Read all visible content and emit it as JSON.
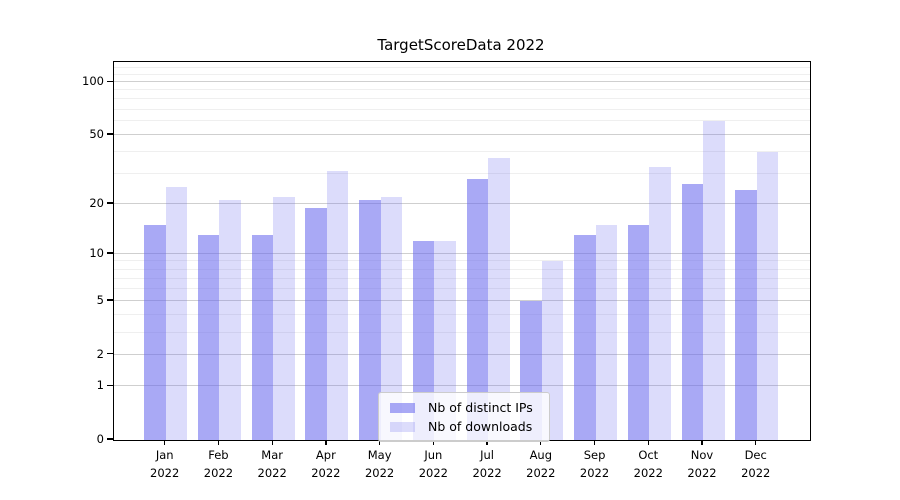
{
  "title": "TargetScoreData 2022",
  "colors": {
    "ips_bar": "rgba(102,102,238,0.56)",
    "downloads_bar": "rgba(102,102,238,0.23)",
    "major_grid": "#cfcfcf",
    "minor_grid": "#efefef",
    "axis": "#000000"
  },
  "x_axis": {
    "months": [
      "Jan",
      "Feb",
      "Mar",
      "Apr",
      "May",
      "Jun",
      "Jul",
      "Aug",
      "Sep",
      "Oct",
      "Nov",
      "Dec"
    ],
    "year": "2022"
  },
  "y_axis": {
    "tick_labels": [
      "100",
      "50",
      "20",
      "10",
      "5",
      "2",
      "1",
      "0"
    ]
  },
  "chart_data": {
    "type": "bar",
    "title": "TargetScoreData 2022",
    "categories": [
      "Jan 2022",
      "Feb 2022",
      "Mar 2022",
      "Apr 2022",
      "May 2022",
      "Jun 2022",
      "Jul 2022",
      "Aug 2022",
      "Sep 2022",
      "Oct 2022",
      "Nov 2022",
      "Dec 2022"
    ],
    "series": [
      {
        "name": "Nb of distinct IPs",
        "values": [
          15,
          13,
          13,
          19,
          21,
          12,
          28,
          5,
          13,
          15,
          26,
          24
        ]
      },
      {
        "name": "Nb of downloads",
        "values": [
          25,
          21,
          22,
          31,
          22,
          12,
          37,
          9,
          15,
          33,
          60,
          40
        ]
      }
    ],
    "yscale": "log1p",
    "y_ticks": [
      0,
      1,
      2,
      5,
      10,
      20,
      50,
      100
    ],
    "y_minor_ticks": [
      3,
      4,
      6,
      7,
      8,
      9,
      30,
      40,
      60,
      70,
      80,
      90,
      110,
      120
    ],
    "ylim": [
      0,
      130
    ],
    "grid": true,
    "legend_position": "lower center"
  }
}
